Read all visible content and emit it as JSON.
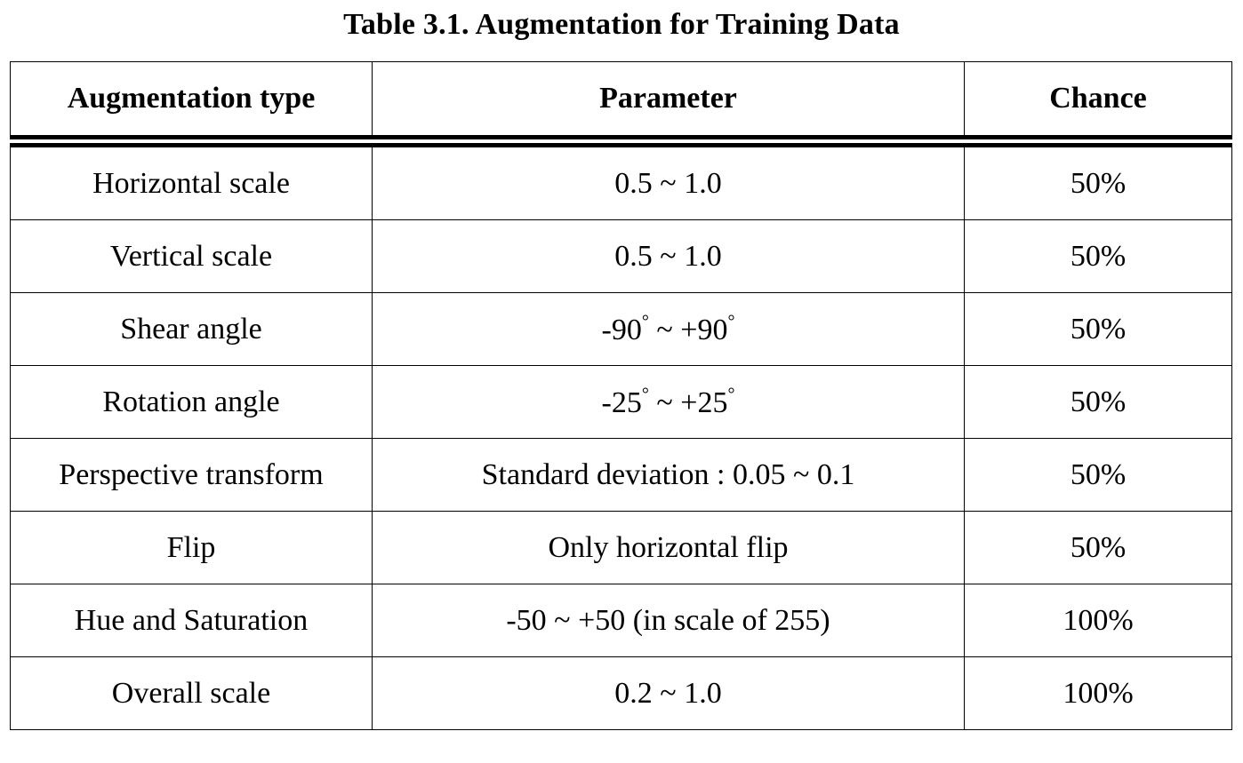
{
  "caption": "Table 3.1. Augmentation for Training Data",
  "table": {
    "headers": [
      "Augmentation type",
      "Parameter",
      "Chance"
    ],
    "rows": [
      {
        "type": "Horizontal scale",
        "parameter": "0.5 ~ 1.0",
        "chance": "50%"
      },
      {
        "type": "Vertical scale",
        "parameter": "0.5 ~ 1.0",
        "chance": "50%"
      },
      {
        "type": "Shear angle",
        "parameter": "-90° ~ +90°",
        "chance": "50%"
      },
      {
        "type": "Rotation angle",
        "parameter": "-25° ~ +25°",
        "chance": "50%"
      },
      {
        "type": "Perspective transform",
        "parameter": "Standard deviation : 0.05 ~ 0.1",
        "chance": "50%"
      },
      {
        "type": "Flip",
        "parameter": "Only horizontal flip",
        "chance": "50%"
      },
      {
        "type": "Hue and Saturation",
        "parameter": "-50 ~ +50 (in scale of 255)",
        "chance": "100%"
      },
      {
        "type": "Overall scale",
        "parameter": "0.2 ~ 1.0",
        "chance": "100%"
      }
    ]
  }
}
